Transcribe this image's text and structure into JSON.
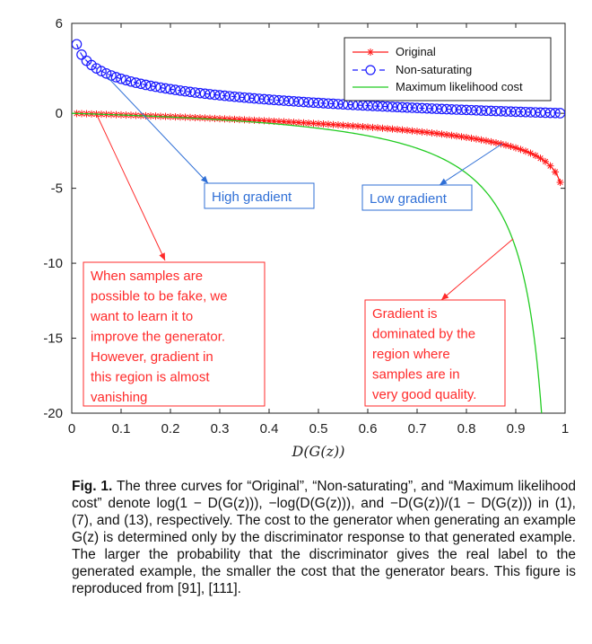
{
  "chart_data": {
    "type": "line",
    "xlabel": "D(G(z))",
    "ylabel": "",
    "xlim": [
      0,
      1
    ],
    "ylim": [
      -20,
      6
    ],
    "x_ticks": [
      "0",
      "0.1",
      "0.2",
      "0.3",
      "0.4",
      "0.5",
      "0.6",
      "0.7",
      "0.8",
      "0.9",
      "1"
    ],
    "y_ticks": [
      "6",
      "0",
      "-5",
      "-10",
      "-15",
      "-20"
    ],
    "grid": false,
    "legend_position": "top-right",
    "series": [
      {
        "name": "Original",
        "formula": "log(1-x)",
        "color": "#ff1a1a",
        "marker": "asterisk",
        "x": [
          0.01,
          0.1,
          0.2,
          0.3,
          0.4,
          0.5,
          0.6,
          0.7,
          0.8,
          0.9,
          0.95,
          0.99
        ],
        "y": [
          -0.01,
          -0.11,
          -0.22,
          -0.36,
          -0.51,
          -0.69,
          -0.92,
          -1.2,
          -1.61,
          -2.3,
          -3.0,
          -4.61
        ]
      },
      {
        "name": "Non-saturating",
        "formula": "-log(x)",
        "color": "#1a1aff",
        "marker": "circle",
        "x": [
          0.01,
          0.05,
          0.1,
          0.2,
          0.3,
          0.4,
          0.5,
          0.6,
          0.7,
          0.8,
          0.9,
          0.99
        ],
        "y": [
          4.61,
          3.0,
          2.3,
          1.61,
          1.2,
          0.92,
          0.69,
          0.51,
          0.36,
          0.22,
          0.11,
          0.01
        ]
      },
      {
        "name": "Maximum likelihood cost",
        "formula": "-x/(1-x)",
        "color": "#22cc22",
        "marker": "none",
        "x": [
          0.0,
          0.1,
          0.2,
          0.3,
          0.4,
          0.5,
          0.6,
          0.7,
          0.8,
          0.9,
          0.95
        ],
        "y": [
          0.0,
          -0.11,
          -0.25,
          -0.43,
          -0.67,
          -1.0,
          -1.5,
          -2.33,
          -4.0,
          -9.0,
          -19.0
        ]
      }
    ],
    "annotations": [
      {
        "text": [
          "High gradient"
        ],
        "color": "#2f6fd6"
      },
      {
        "text": [
          "Low gradient"
        ],
        "color": "#2f6fd6"
      },
      {
        "text": [
          "When samples are",
          "possible to be fake, we",
          "want to learn it to",
          "improve the generator.",
          "However, gradient in",
          "this region is almost",
          "vanishing"
        ],
        "color": "#ff2a2a"
      },
      {
        "text": [
          "Gradient is",
          "dominated by the",
          "region where",
          "samples are in",
          "very good quality."
        ],
        "color": "#ff2a2a"
      }
    ]
  },
  "caption": {
    "label": "Fig. 1.",
    "text": "The three curves for “Original”, “Non-saturating”, and “Maximum likelihood cost” denote log(1 − D(G(z))), −log(D(G(z))), and −D(G(z))/(1 − D(G(z))) in (1), (7), and (13), respectively. The cost to the generator when generating an example G(z) is determined only by the discriminator response to that generated example. The larger the probability that the discriminator gives the real label to the generated example, the smaller the cost that the generator bears. This figure is reproduced from [91], [111]."
  }
}
